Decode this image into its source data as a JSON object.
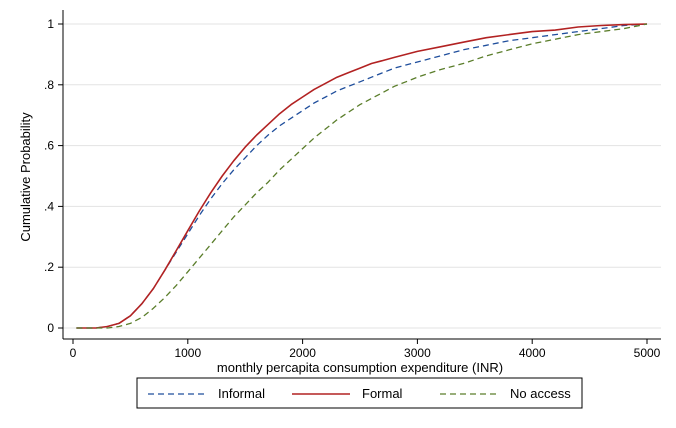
{
  "chart_data": {
    "type": "line",
    "title": "",
    "xlabel": "monthly percapita consumption expenditure (INR)",
    "ylabel": "Cumulative Probability",
    "xlim": [
      0,
      5000
    ],
    "ylim": [
      0,
      1
    ],
    "x_ticks": [
      0,
      1000,
      2000,
      3000,
      4000,
      5000
    ],
    "x_tick_labels": [
      "0",
      "1000",
      "2000",
      "3000",
      "4000",
      "5000"
    ],
    "y_ticks": [
      0,
      0.2,
      0.4,
      0.6,
      0.8,
      1
    ],
    "y_tick_labels": [
      "0",
      ".2",
      ".4",
      ".6",
      ".8",
      "1"
    ],
    "grid": true,
    "legend_position": "bottom",
    "series": [
      {
        "name": "Informal",
        "color": "#1f4e9c",
        "style": "dashed",
        "x": [
          30,
          100,
          200,
          300,
          400,
          500,
          600,
          700,
          800,
          900,
          1000,
          1100,
          1200,
          1300,
          1400,
          1500,
          1600,
          1700,
          1800,
          1900,
          2000,
          2100,
          2200,
          2300,
          2400,
          2500,
          2600,
          2700,
          2800,
          2900,
          3000,
          3200,
          3400,
          3600,
          3800,
          4000,
          4200,
          4400,
          4600,
          4800,
          5000
        ],
        "values": [
          0,
          0,
          0,
          0.005,
          0.015,
          0.04,
          0.08,
          0.13,
          0.19,
          0.25,
          0.31,
          0.37,
          0.425,
          0.475,
          0.52,
          0.56,
          0.6,
          0.635,
          0.665,
          0.69,
          0.715,
          0.74,
          0.76,
          0.78,
          0.795,
          0.81,
          0.825,
          0.84,
          0.855,
          0.865,
          0.875,
          0.895,
          0.915,
          0.93,
          0.945,
          0.955,
          0.965,
          0.975,
          0.985,
          0.995,
          1
        ]
      },
      {
        "name": "Formal",
        "color": "#b22222",
        "style": "solid",
        "x": [
          30,
          100,
          200,
          300,
          400,
          500,
          600,
          700,
          800,
          900,
          1000,
          1100,
          1200,
          1300,
          1400,
          1500,
          1600,
          1700,
          1800,
          1900,
          2000,
          2100,
          2200,
          2300,
          2400,
          2500,
          2600,
          2700,
          2800,
          2900,
          3000,
          3200,
          3400,
          3600,
          3800,
          4000,
          4200,
          4400,
          4600,
          4800,
          5000
        ],
        "values": [
          0,
          0,
          0,
          0.005,
          0.015,
          0.04,
          0.08,
          0.13,
          0.19,
          0.255,
          0.32,
          0.385,
          0.445,
          0.5,
          0.55,
          0.595,
          0.635,
          0.67,
          0.705,
          0.735,
          0.76,
          0.785,
          0.805,
          0.825,
          0.84,
          0.855,
          0.87,
          0.88,
          0.89,
          0.9,
          0.91,
          0.925,
          0.94,
          0.955,
          0.965,
          0.975,
          0.98,
          0.99,
          0.995,
          0.998,
          1
        ]
      },
      {
        "name": "No access",
        "color": "#5a7d2a",
        "style": "dashed",
        "x": [
          30,
          100,
          200,
          300,
          400,
          500,
          600,
          700,
          800,
          900,
          1000,
          1100,
          1200,
          1300,
          1400,
          1500,
          1600,
          1700,
          1800,
          1900,
          2000,
          2100,
          2200,
          2300,
          2400,
          2500,
          2600,
          2700,
          2800,
          2900,
          3000,
          3200,
          3400,
          3600,
          3800,
          4000,
          4200,
          4400,
          4600,
          4800,
          5000
        ],
        "values": [
          0,
          0,
          0,
          0,
          0.005,
          0.015,
          0.035,
          0.065,
          0.1,
          0.14,
          0.185,
          0.23,
          0.275,
          0.32,
          0.365,
          0.405,
          0.445,
          0.48,
          0.52,
          0.555,
          0.59,
          0.625,
          0.655,
          0.685,
          0.71,
          0.735,
          0.755,
          0.775,
          0.795,
          0.81,
          0.825,
          0.85,
          0.87,
          0.895,
          0.915,
          0.935,
          0.95,
          0.965,
          0.975,
          0.985,
          1
        ]
      }
    ]
  }
}
